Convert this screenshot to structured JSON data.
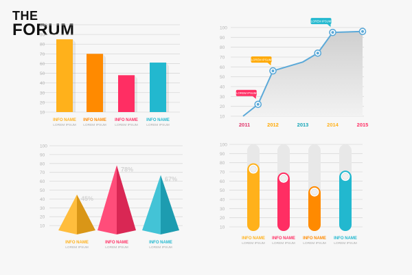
{
  "brand": {
    "line1": "THE",
    "line2": "FORUM"
  },
  "colors": {
    "yellow": "#FFB11B",
    "orange": "#FF8A00",
    "pink": "#FF2E63",
    "teal": "#22B8CF",
    "line": "#5BA9D8",
    "grid": "#d9d9d9",
    "tick": "#b3b3b3",
    "year2012": "#FFA800",
    "year2013": "#15A6B8",
    "year2014": "#FFB11B",
    "year2015": "#FF2E63",
    "year2011": "#E0356A"
  },
  "chart_data": [
    {
      "id": "top-left",
      "type": "bar",
      "title": "",
      "ylim": [
        10,
        100
      ],
      "yticks": [
        10,
        20,
        30,
        40,
        50,
        60,
        70,
        80,
        90,
        100
      ],
      "categories": [
        "INFO NAME",
        "INFO NAME",
        "INFO NAME",
        "INFO NAME"
      ],
      "sublabels": [
        "LOREM IPSUM",
        "LOREM IPSUM",
        "LOREM IPSUM",
        "LOREM IPSUM"
      ],
      "values": [
        85,
        70,
        48,
        61
      ],
      "colors": [
        "#FFB11B",
        "#FF8A00",
        "#FF2E63",
        "#22B8CF"
      ],
      "grid": true
    },
    {
      "id": "top-right",
      "type": "line",
      "title": "",
      "ylim": [
        10,
        100
      ],
      "yticks": [
        10,
        20,
        30,
        40,
        50,
        60,
        70,
        80,
        90,
        100
      ],
      "x": [
        2011,
        2011.5,
        2012,
        2013,
        2013.5,
        2014,
        2015
      ],
      "values": [
        10,
        22,
        56,
        65,
        74,
        95,
        96
      ],
      "markers": [
        1,
        2,
        4,
        5,
        6
      ],
      "xticklabels": [
        "2011",
        "2012",
        "2013",
        "2014",
        "2015"
      ],
      "xtick_colors": [
        "#E0356A",
        "#FFA800",
        "#15A6B8",
        "#FFB11B",
        "#FF2E63"
      ],
      "callouts": [
        {
          "text": "LOREM IPSUM",
          "point": 1,
          "color": "#FF2E63"
        },
        {
          "text": "LOREM IPSUM",
          "point": 2,
          "color": "#FFA800"
        },
        {
          "text": "LOREM IPSUM",
          "point": 5,
          "color": "#22B8CF"
        }
      ],
      "grid": true
    },
    {
      "id": "bottom-left",
      "type": "bar",
      "subtype": "pyramid",
      "title": "",
      "ylim": [
        0,
        100
      ],
      "yticks": [
        10,
        20,
        30,
        40,
        50,
        60,
        70,
        80,
        90,
        100
      ],
      "categories": [
        "INFO NAME",
        "INFO NAME",
        "INFO NAME"
      ],
      "sublabels": [
        "LOREM IPSUM",
        "LOREM IPSUM",
        "LOREM IPSUM"
      ],
      "values": [
        45,
        78,
        67
      ],
      "value_labels": [
        "45%",
        "78%",
        "67%"
      ],
      "colors": [
        "#FFB11B",
        "#FF2E63",
        "#22B8CF"
      ],
      "grid": true
    },
    {
      "id": "bottom-right",
      "type": "bar",
      "subtype": "slider",
      "title": "",
      "ylim": [
        10,
        100
      ],
      "yticks": [
        10,
        20,
        30,
        40,
        50,
        60,
        70,
        80,
        90,
        100
      ],
      "categories": [
        "INFO NAME",
        "INFO NAME",
        "INFO NAME",
        "INFO NAME"
      ],
      "sublabels": [
        "LOREM IPSUM",
        "LOREM IPSUM",
        "LOREM IPSUM",
        "LOREM IPSUM"
      ],
      "values": [
        73,
        63,
        48,
        65
      ],
      "colors": [
        "#FFB11B",
        "#FF2E63",
        "#FF8A00",
        "#22B8CF"
      ],
      "grid": true
    }
  ]
}
